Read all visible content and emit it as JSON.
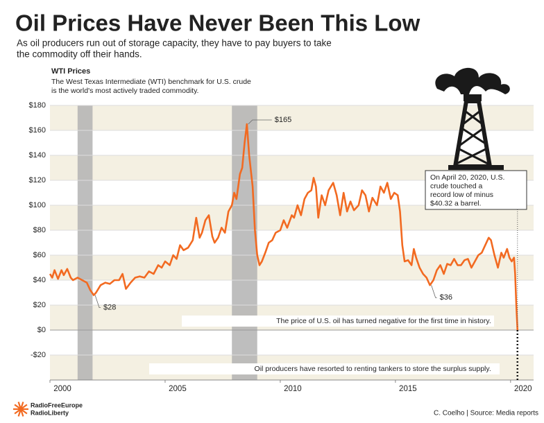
{
  "chart_data": {
    "type": "line",
    "title": "Oil Prices Have Never Been This Low",
    "subtitle_lines": [
      "As oil producers run out of storage capacity, they have to pay buyers to take",
      "the commodity off their hands."
    ],
    "chart_title": "WTI Prices",
    "description_lines": [
      "The West Texas Intermediate (WTI) benchmark for U.S. crude",
      "is the world's most actively traded commodity."
    ],
    "color": "#f26a21",
    "x": [
      2000.0,
      2000.1,
      2000.2,
      2000.35,
      2000.5,
      2000.6,
      2000.75,
      2000.9,
      2001.0,
      2001.2,
      2001.4,
      2001.6,
      2001.75,
      2001.9,
      2002.0,
      2002.2,
      2002.4,
      2002.6,
      2002.8,
      2003.0,
      2003.15,
      2003.3,
      2003.5,
      2003.7,
      2003.9,
      2004.1,
      2004.3,
      2004.5,
      2004.7,
      2004.85,
      2005.0,
      2005.2,
      2005.35,
      2005.5,
      2005.65,
      2005.8,
      2006.0,
      2006.2,
      2006.35,
      2006.5,
      2006.6,
      2006.75,
      2006.9,
      2007.05,
      2007.15,
      2007.3,
      2007.45,
      2007.6,
      2007.75,
      2007.9,
      2008.0,
      2008.1,
      2008.25,
      2008.35,
      2008.45,
      2008.55,
      2008.65,
      2008.8,
      2008.9,
      2009.0,
      2009.1,
      2009.2,
      2009.35,
      2009.5,
      2009.65,
      2009.8,
      2010.0,
      2010.15,
      2010.3,
      2010.5,
      2010.6,
      2010.75,
      2010.9,
      2011.05,
      2011.2,
      2011.35,
      2011.45,
      2011.55,
      2011.65,
      2011.8,
      2011.95,
      2012.1,
      2012.3,
      2012.45,
      2012.6,
      2012.75,
      2012.9,
      2013.05,
      2013.2,
      2013.4,
      2013.55,
      2013.7,
      2013.85,
      2014.0,
      2014.2,
      2014.35,
      2014.5,
      2014.65,
      2014.8,
      2014.95,
      2015.1,
      2015.2,
      2015.3,
      2015.4,
      2015.55,
      2015.7,
      2015.8,
      2015.9,
      2016.05,
      2016.2,
      2016.35,
      2016.5,
      2016.65,
      2016.8,
      2016.95,
      2017.1,
      2017.25,
      2017.4,
      2017.55,
      2017.7,
      2017.85,
      2018.0,
      2018.15,
      2018.3,
      2018.45,
      2018.6,
      2018.75,
      2018.9,
      2019.05,
      2019.15,
      2019.3,
      2019.45,
      2019.6,
      2019.7,
      2019.85,
      2019.95,
      2020.05,
      2020.15,
      2020.2,
      2020.25,
      2020.3
    ],
    "values": [
      45,
      42,
      48,
      41,
      48,
      44,
      49,
      42,
      40,
      42,
      40,
      38,
      32,
      28,
      30,
      36,
      38,
      37,
      40,
      40,
      45,
      33,
      38,
      42,
      43,
      42,
      47,
      45,
      52,
      50,
      55,
      52,
      60,
      57,
      68,
      64,
      66,
      72,
      90,
      74,
      78,
      88,
      92,
      75,
      70,
      74,
      82,
      78,
      95,
      100,
      110,
      105,
      125,
      130,
      150,
      165,
      140,
      115,
      80,
      60,
      52,
      55,
      62,
      70,
      72,
      78,
      80,
      88,
      82,
      92,
      90,
      100,
      92,
      105,
      110,
      112,
      122,
      115,
      90,
      108,
      100,
      112,
      118,
      108,
      92,
      110,
      95,
      103,
      96,
      100,
      112,
      108,
      95,
      106,
      100,
      115,
      110,
      118,
      105,
      110,
      108,
      95,
      68,
      55,
      56,
      52,
      65,
      58,
      50,
      45,
      42,
      36,
      40,
      48,
      52,
      45,
      53,
      52,
      57,
      52,
      52,
      56,
      57,
      50,
      55,
      60,
      62,
      68,
      74,
      72,
      60,
      50,
      62,
      58,
      65,
      58,
      55,
      58,
      45,
      20,
      0
    ],
    "record_low": {
      "x": 2020.3,
      "value": -40.32
    },
    "shaded_periods": [
      [
        2001.2,
        2001.85
      ],
      [
        2007.9,
        2009.0
      ]
    ],
    "xlim": [
      2000,
      2021
    ],
    "xticks": [
      2000,
      2005,
      2010,
      2015,
      2020
    ],
    "ylim": [
      -40,
      180
    ],
    "yticks": [
      {
        "value": -20,
        "label": "-$20"
      },
      {
        "value": 0,
        "label": "$0"
      },
      {
        "value": 20,
        "label": "$20"
      },
      {
        "value": 40,
        "label": "$40"
      },
      {
        "value": 60,
        "label": "$60"
      },
      {
        "value": 80,
        "label": "$80"
      },
      {
        "value": 100,
        "label": "$100"
      },
      {
        "value": 120,
        "label": "$120"
      },
      {
        "value": 140,
        "label": "$140"
      },
      {
        "value": 160,
        "label": "$160"
      },
      {
        "value": 180,
        "label": "$180"
      }
    ],
    "grid": true,
    "annotations": [
      {
        "text": "$165",
        "x": 2008.55,
        "y": 165
      },
      {
        "text": "$28",
        "x": 2001.9,
        "y": 28
      },
      {
        "text": "$36",
        "x": 2016.5,
        "y": 36
      }
    ],
    "callout_lines": [
      "On April 20, 2020, U.S.",
      "crude touched a",
      "record low of minus",
      "$40.32 a barrel."
    ],
    "notes": [
      "The price of U.S. oil has turned negative for the first time in history.",
      "Oil producers have resorted to renting tankers to store the surplus supply."
    ],
    "logo_lines": [
      "RadioFreeEurope",
      "RadioLiberty"
    ],
    "credit": "C. Coelho | Source: Media reports"
  }
}
